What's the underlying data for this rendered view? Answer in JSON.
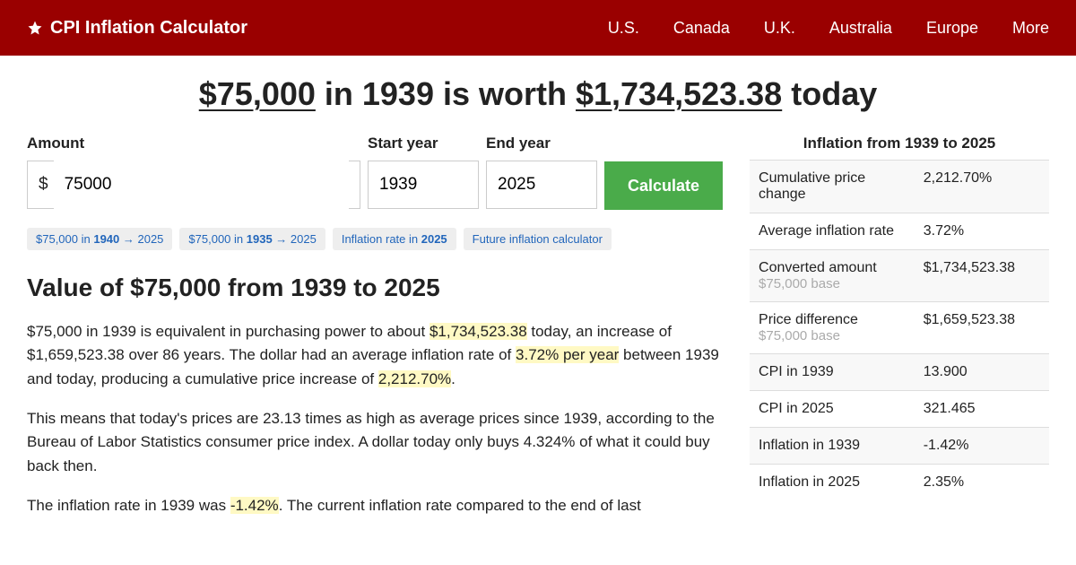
{
  "header": {
    "brand": "CPI Inflation Calculator",
    "nav": [
      "U.S.",
      "Canada",
      "U.K.",
      "Australia",
      "Europe",
      "More"
    ]
  },
  "headline": {
    "p1": "$75,000",
    "p2": " in 1939 is worth ",
    "p3": "$1,734,523.38",
    "p4": " today"
  },
  "form": {
    "amount_label": "Amount",
    "amount_value": "75000",
    "currency": "$",
    "start_label": "Start year",
    "start_value": "1939",
    "end_label": "End year",
    "end_value": "2025",
    "button": "Calculate"
  },
  "quicklinks": [
    {
      "p1": "$75,000 in ",
      "b": "1940",
      "p2": " → 2025"
    },
    {
      "p1": "$75,000 in ",
      "b": "1935",
      "p2": " → 2025"
    },
    {
      "p1": "Inflation rate in ",
      "b": "2025",
      "p2": ""
    },
    {
      "p1": "Future inflation calculator",
      "b": "",
      "p2": ""
    }
  ],
  "section_h": "Value of $75,000 from 1939 to 2025",
  "paras": {
    "p1a": "$75,000 in 1939 is equivalent in purchasing power to about ",
    "p1h1": "$1,734,523.38",
    "p1b": " today, an increase of $1,659,523.38 over 86 years. The dollar had an average inflation rate of ",
    "p1h2": "3.72% per year",
    "p1c": " between 1939 and today, producing a cumulative price increase of ",
    "p1h3": "2,212.70%",
    "p1d": ".",
    "p2": "This means that today's prices are 23.13 times as high as average prices since 1939, according to the Bureau of Labor Statistics consumer price index. A dollar today only buys 4.324% of what it could buy back then.",
    "p3a": "The inflation rate in 1939 was ",
    "p3h": "-1.42%",
    "p3b": ". The current inflation rate compared to the end of last"
  },
  "side": {
    "title": "Inflation from 1939 to 2025",
    "rows": [
      {
        "l": "Cumulative price change",
        "s": "",
        "v": "2,212.70%"
      },
      {
        "l": "Average inflation rate",
        "s": "",
        "v": "3.72%"
      },
      {
        "l": "Converted amount",
        "s": "$75,000 base",
        "v": "$1,734,523.38"
      },
      {
        "l": "Price difference",
        "s": "$75,000 base",
        "v": "$1,659,523.38"
      },
      {
        "l": "CPI in 1939",
        "s": "",
        "v": "13.900"
      },
      {
        "l": "CPI in 2025",
        "s": "",
        "v": "321.465"
      },
      {
        "l": "Inflation in 1939",
        "s": "",
        "v": "-1.42%"
      },
      {
        "l": "Inflation in 2025",
        "s": "",
        "v": "2.35%"
      }
    ]
  },
  "colors": {
    "header_bg": "#9a0000",
    "button_bg": "#4aab4a",
    "link": "#2266bb",
    "highlight": "#fff9c4"
  }
}
